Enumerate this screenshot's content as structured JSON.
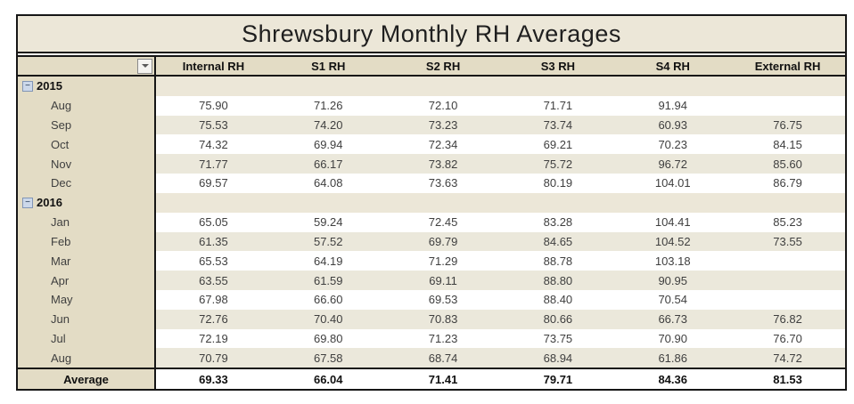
{
  "title": "Shrewsbury Monthly RH Averages",
  "colors": {
    "beige": "#ece7d8",
    "tan": "#e3dcc5",
    "band": "#ebe8db",
    "border": "#161616",
    "value": "#3f3f3f",
    "bold": "#111111"
  },
  "icons": {
    "filter_dropdown": "▼",
    "collapse_minus": "−"
  },
  "table": {
    "columns": [
      "Internal RH",
      "S1 RH",
      "S2 RH",
      "S3 RH",
      "S4 RH",
      "External RH"
    ],
    "groups": [
      {
        "name": "2015",
        "collapsed": false,
        "rows": [
          {
            "label": "Aug",
            "values": [
              "75.90",
              "71.26",
              "72.10",
              "71.71",
              "91.94",
              ""
            ]
          },
          {
            "label": "Sep",
            "values": [
              "75.53",
              "74.20",
              "73.23",
              "73.74",
              "60.93",
              "76.75"
            ]
          },
          {
            "label": "Oct",
            "values": [
              "74.32",
              "69.94",
              "72.34",
              "69.21",
              "70.23",
              "84.15"
            ]
          },
          {
            "label": "Nov",
            "values": [
              "71.77",
              "66.17",
              "73.82",
              "75.72",
              "96.72",
              "85.60"
            ]
          },
          {
            "label": "Dec",
            "values": [
              "69.57",
              "64.08",
              "73.63",
              "80.19",
              "104.01",
              "86.79"
            ]
          }
        ]
      },
      {
        "name": "2016",
        "collapsed": false,
        "rows": [
          {
            "label": "Jan",
            "values": [
              "65.05",
              "59.24",
              "72.45",
              "83.28",
              "104.41",
              "85.23"
            ]
          },
          {
            "label": "Feb",
            "values": [
              "61.35",
              "57.52",
              "69.79",
              "84.65",
              "104.52",
              "73.55"
            ]
          },
          {
            "label": "Mar",
            "values": [
              "65.53",
              "64.19",
              "71.29",
              "88.78",
              "103.18",
              ""
            ]
          },
          {
            "label": "Apr",
            "values": [
              "63.55",
              "61.59",
              "69.11",
              "88.80",
              "90.95",
              ""
            ]
          },
          {
            "label": "May",
            "values": [
              "67.98",
              "66.60",
              "69.53",
              "88.40",
              "70.54",
              ""
            ]
          },
          {
            "label": "Jun",
            "values": [
              "72.76",
              "70.40",
              "70.83",
              "80.66",
              "66.73",
              "76.82"
            ]
          },
          {
            "label": "Jul",
            "values": [
              "72.19",
              "69.80",
              "71.23",
              "73.75",
              "70.90",
              "76.70"
            ]
          },
          {
            "label": "Aug",
            "values": [
              "70.79",
              "67.58",
              "68.74",
              "68.94",
              "61.86",
              "74.72"
            ]
          }
        ]
      }
    ],
    "average": {
      "label": "Average",
      "values": [
        "69.33",
        "66.04",
        "71.41",
        "79.71",
        "84.36",
        "81.53"
      ]
    }
  }
}
